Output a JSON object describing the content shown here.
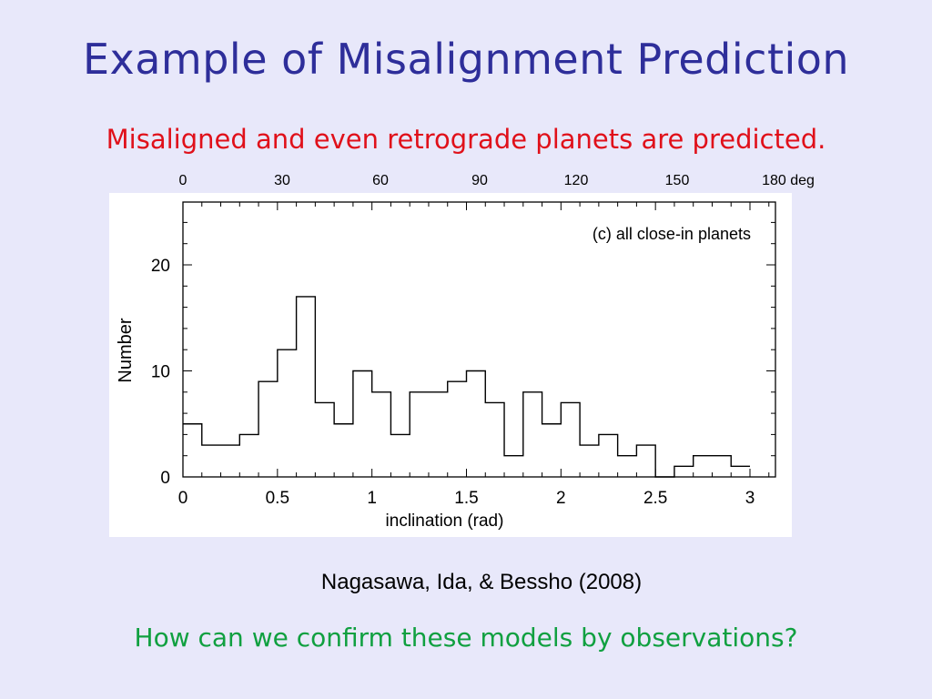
{
  "slide": {
    "title": "Example of Misalignment Prediction",
    "subtitle": "Misaligned and even retrograde planets are predicted.",
    "citation": "Nagasawa, Ida, & Bessho (2008)",
    "question": "How can we confirm these models by observations?",
    "colors": {
      "background": "#e8e8fa",
      "title": "#2e2e9a",
      "subtitle": "#e0101a",
      "question": "#10a040"
    }
  },
  "deg_axis": {
    "ticks": [
      "0",
      "30",
      "60",
      "90",
      "120",
      "150",
      "180 deg"
    ]
  },
  "chart_data": {
    "type": "histogram",
    "title": "",
    "annotation": "(c) all close-in planets",
    "xlabel": "inclination (rad)",
    "ylabel": "Number",
    "xlim": [
      0,
      3.1
    ],
    "ylim": [
      0,
      25
    ],
    "x_ticks": [
      0,
      0.5,
      1,
      1.5,
      2,
      2.5,
      3
    ],
    "x_tick_labels": [
      "0",
      "0.5",
      "1",
      "1.5",
      "2",
      "2.5",
      "3"
    ],
    "y_ticks": [
      0,
      10,
      20
    ],
    "y_tick_labels": [
      "0",
      "10",
      "20"
    ],
    "grid": false,
    "bin_width": 0.1,
    "bin_starts": [
      0,
      0.1,
      0.2,
      0.3,
      0.4,
      0.5,
      0.6,
      0.7,
      0.8,
      0.9,
      1.0,
      1.1,
      1.2,
      1.3,
      1.4,
      1.5,
      1.6,
      1.7,
      1.8,
      1.9,
      2.0,
      2.1,
      2.2,
      2.3,
      2.4,
      2.5,
      2.6,
      2.7,
      2.8,
      2.9
    ],
    "counts": [
      5,
      3,
      3,
      4,
      9,
      12,
      17,
      7,
      5,
      10,
      8,
      4,
      8,
      8,
      9,
      10,
      7,
      2,
      8,
      5,
      7,
      3,
      4,
      2,
      3,
      0,
      1,
      2,
      2,
      1
    ]
  }
}
